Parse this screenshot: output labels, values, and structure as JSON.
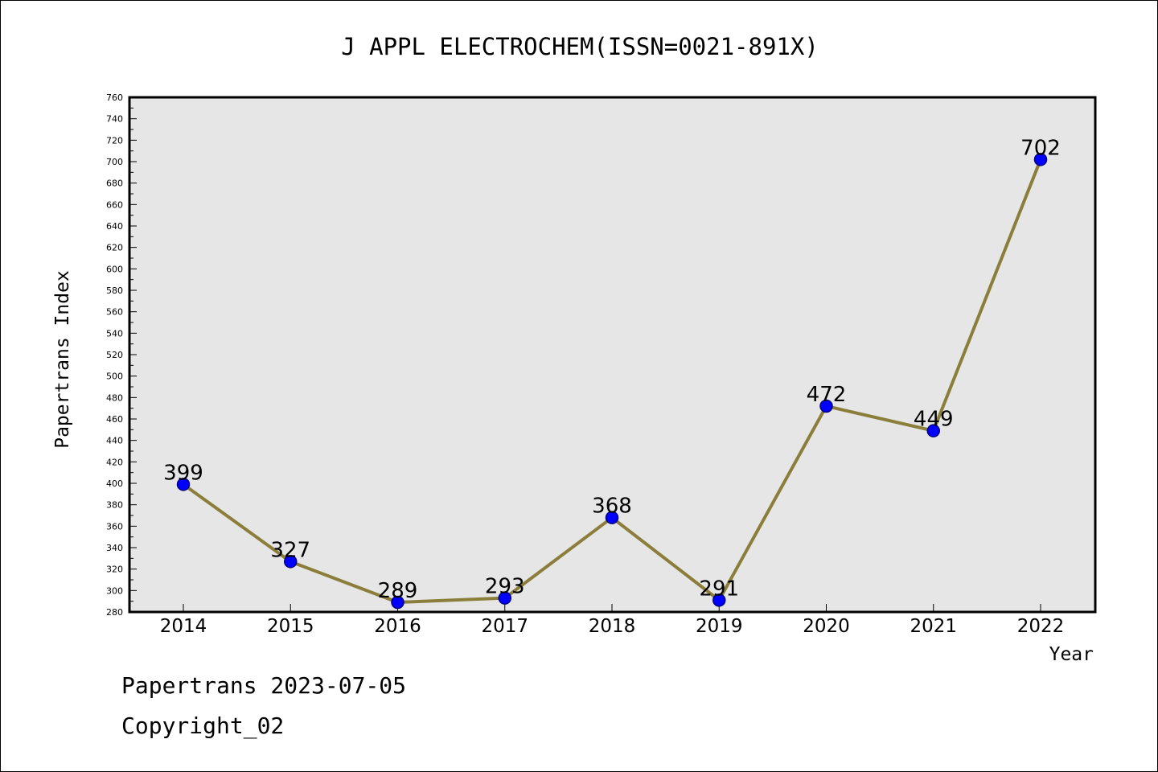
{
  "chart_data": {
    "type": "line",
    "title": "J APPL ELECTROCHEM(ISSN=0021-891X)",
    "xlabel": "Year",
    "ylabel": "Papertrans Index",
    "categories": [
      "2014",
      "2015",
      "2016",
      "2017",
      "2018",
      "2019",
      "2020",
      "2021",
      "2022"
    ],
    "series": [
      {
        "values": [
          399,
          327,
          289,
          293,
          368,
          291,
          472,
          449,
          702
        ]
      }
    ],
    "data_labels": [
      "399",
      "327",
      "289",
      "293",
      "368",
      "291",
      "472",
      "449",
      "702"
    ],
    "ylim": [
      280,
      760
    ],
    "yticks": [
      280,
      300,
      320,
      340,
      360,
      380,
      400,
      420,
      440,
      460,
      480,
      500,
      520,
      540,
      560,
      580,
      600,
      620,
      640,
      660,
      680,
      700,
      720,
      740,
      760
    ],
    "grid": false,
    "legend": "none",
    "colors": {
      "plot_background": "#e6e6e6",
      "line": "#8b7d3a",
      "marker_fill": "#0000ff",
      "marker_stroke": "#000080"
    }
  },
  "footer": {
    "line1": "Papertrans 2023-07-05",
    "line2": "Copyright_02"
  }
}
